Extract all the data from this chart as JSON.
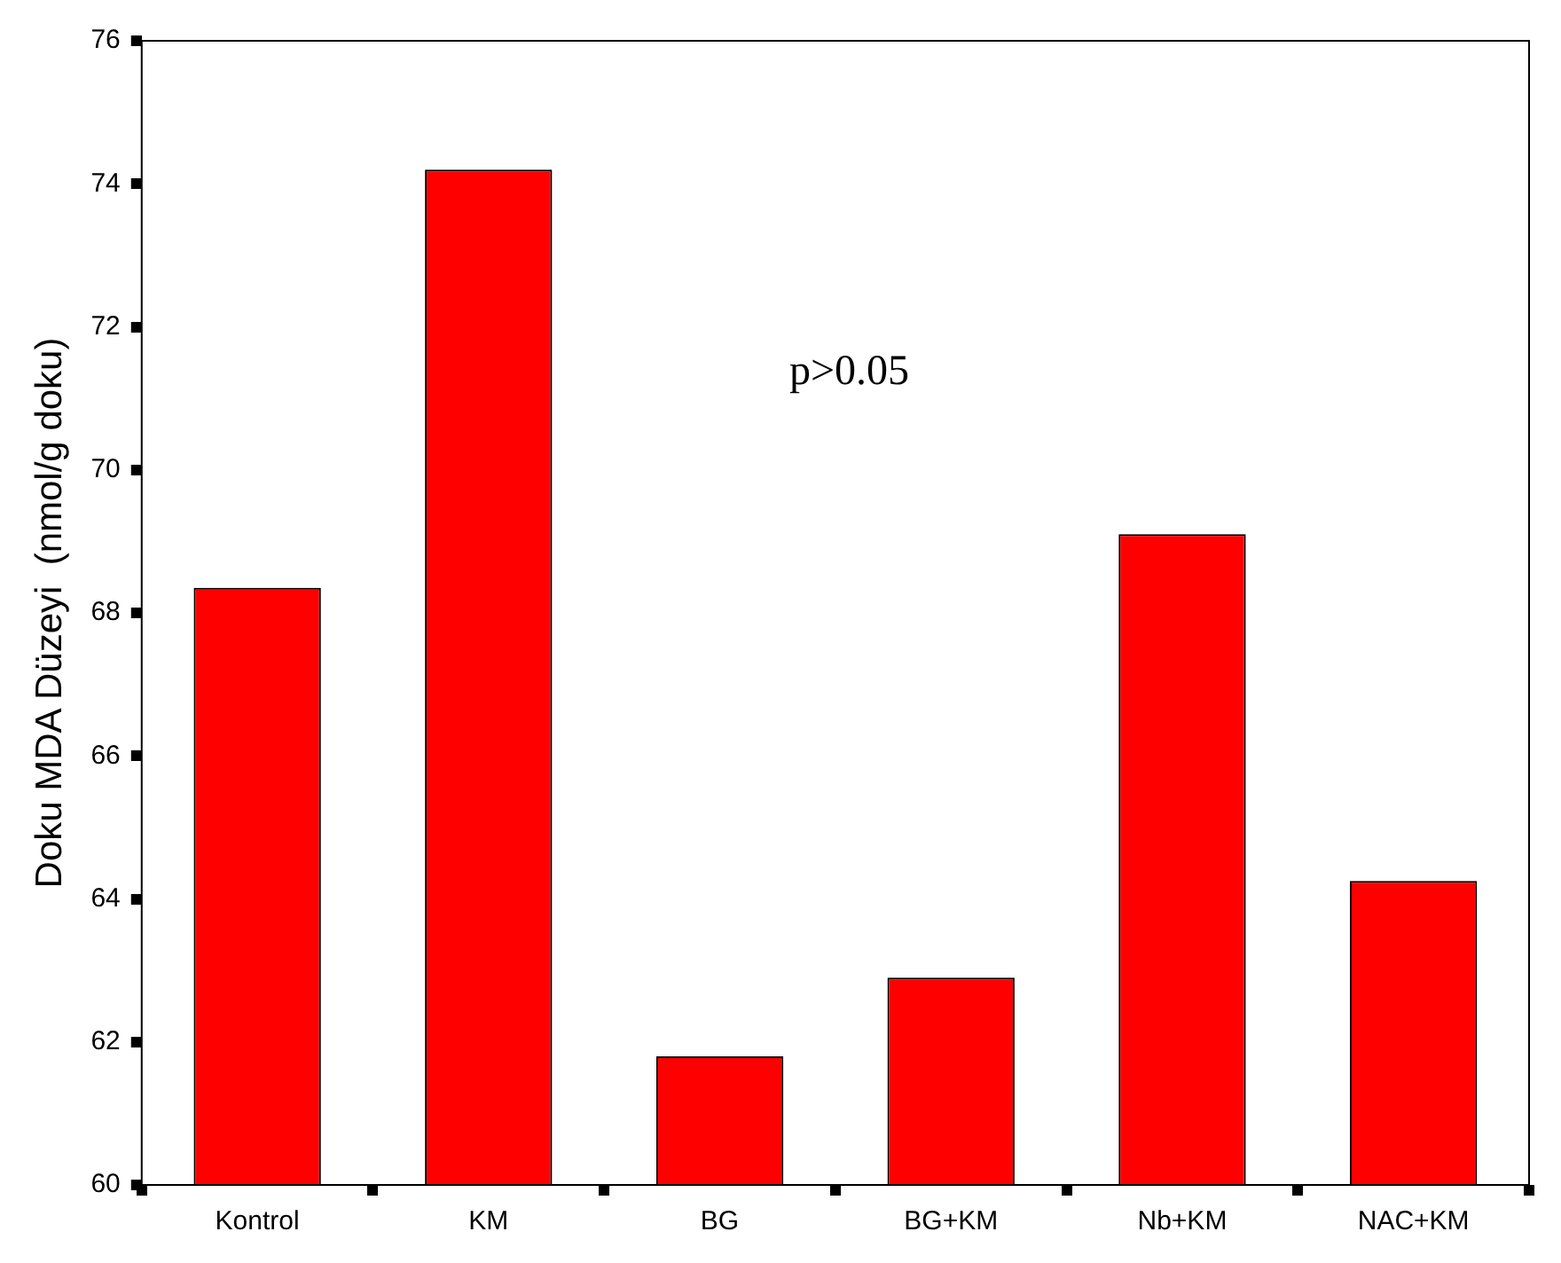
{
  "chart_data": {
    "type": "bar",
    "ylabel": "Doku MDA Düzeyi  (nmol/g doku)",
    "categories": [
      "Kontrol",
      "KM",
      "BG",
      "BG+KM",
      "Nb+KM",
      "NAC+KM"
    ],
    "values": [
      68.35,
      74.2,
      61.8,
      62.9,
      69.1,
      64.25
    ],
    "color": "#ff0000",
    "ylim": [
      60,
      76
    ],
    "yticks": [
      60,
      62,
      64,
      66,
      68,
      70,
      72,
      74,
      76
    ],
    "grid": false,
    "legend": false,
    "annotations": [
      "p>0.05"
    ]
  }
}
